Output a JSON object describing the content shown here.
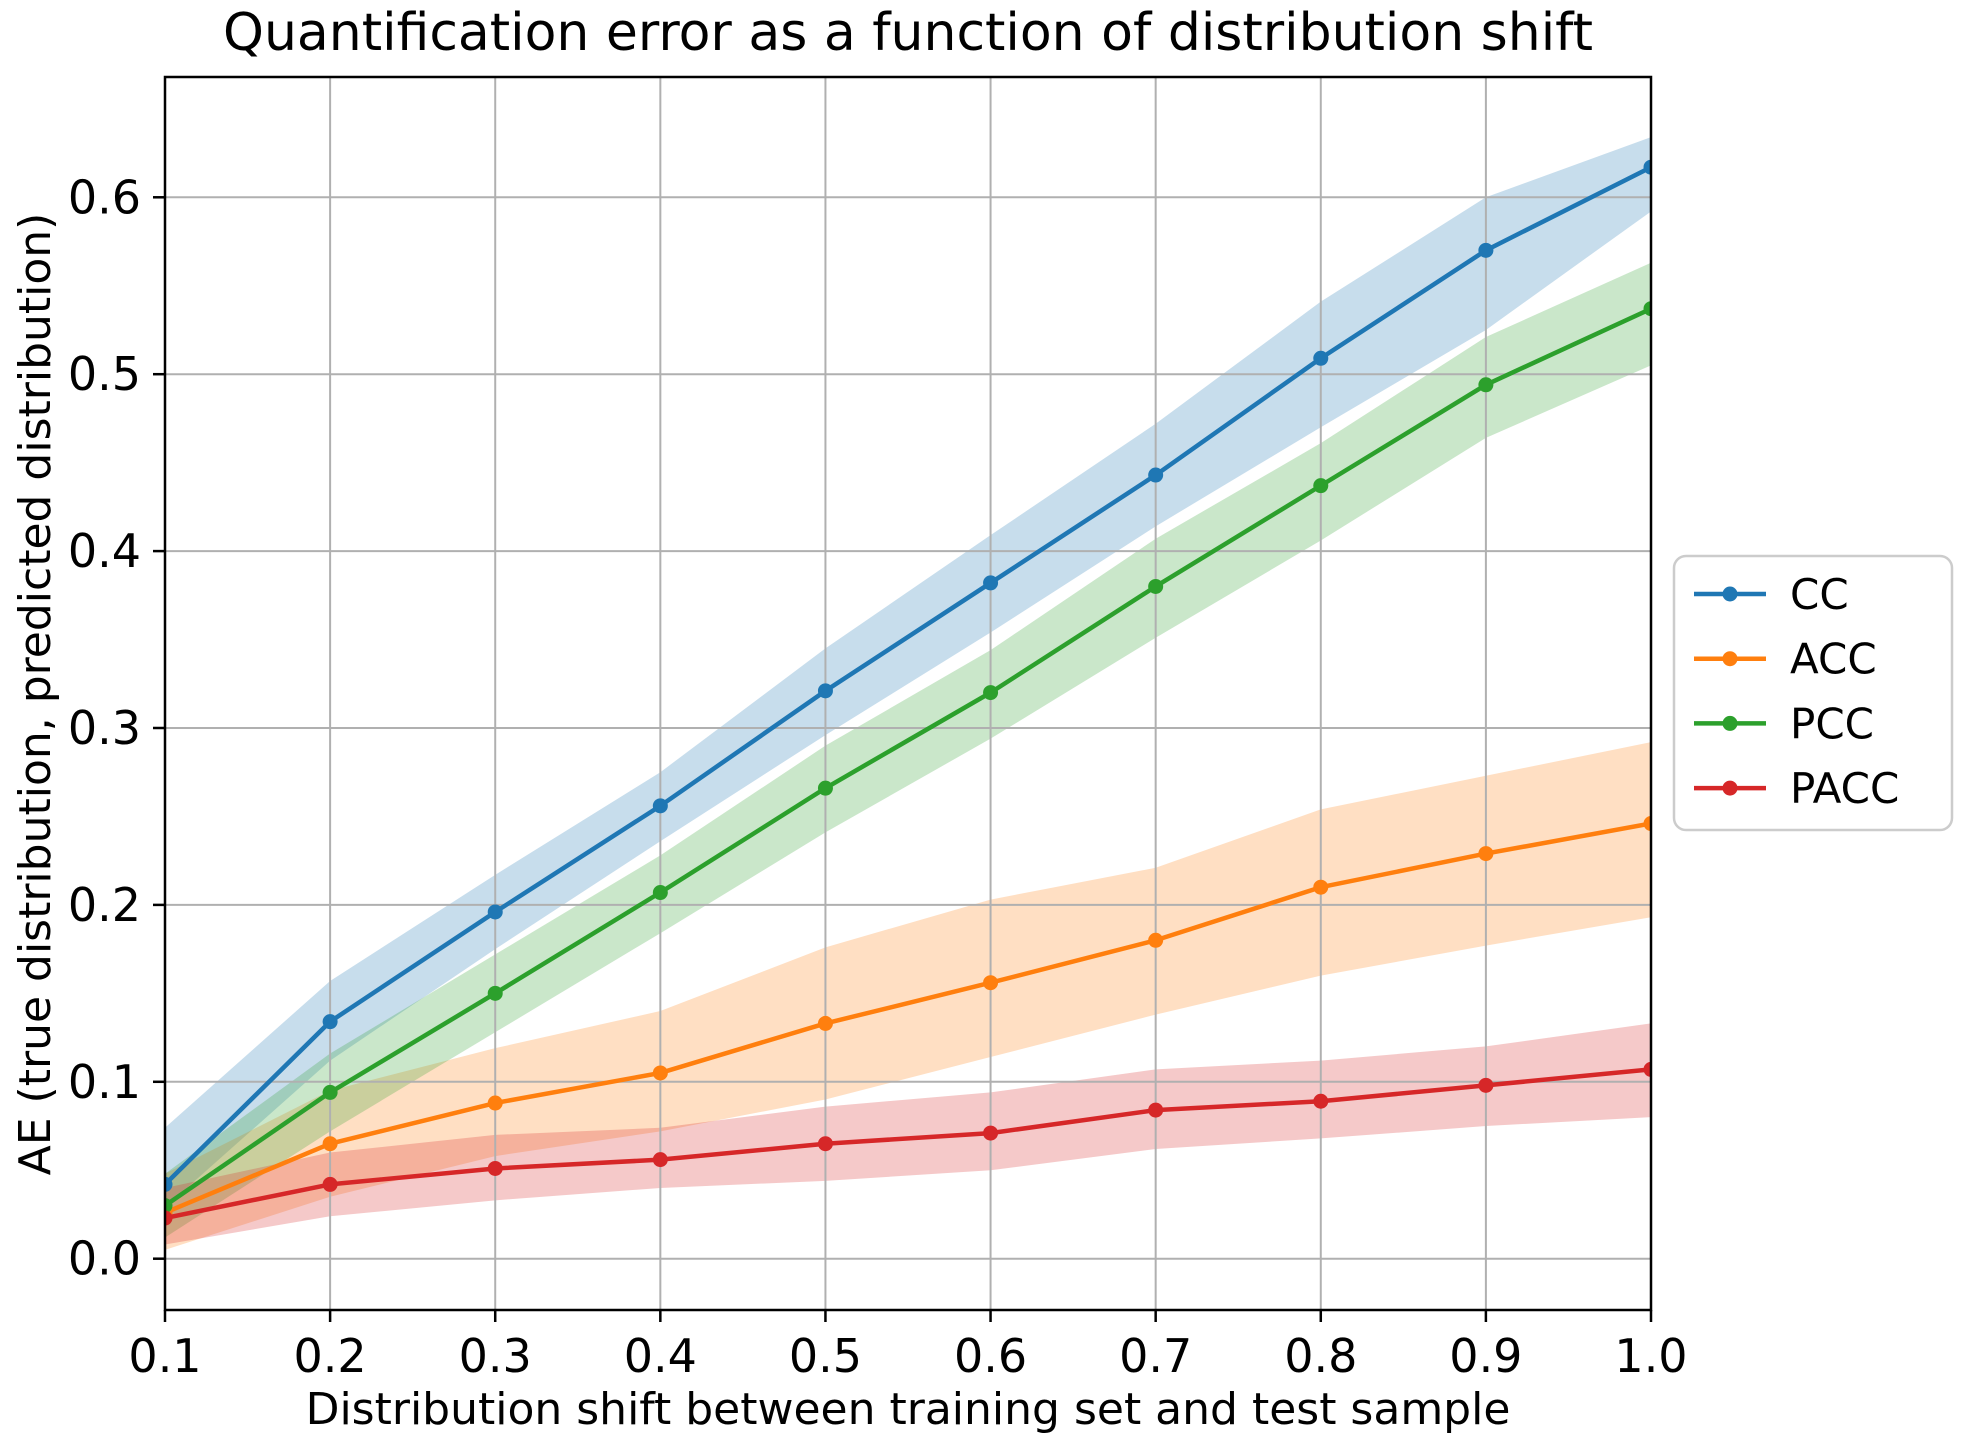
{
  "chart_data": {
    "type": "line",
    "title": "Quantification error as a function of distribution shift",
    "xlabel": "Distribution shift between training set and test sample",
    "ylabel": "AE (true distribution, predicted distribution)",
    "x": [
      0.1,
      0.2,
      0.3,
      0.4,
      0.5,
      0.6,
      0.7,
      0.8,
      0.9,
      1.0
    ],
    "x_tick_labels": [
      "0.1",
      "0.2",
      "0.3",
      "0.4",
      "0.5",
      "0.6",
      "0.7",
      "0.8",
      "0.9",
      "1.0"
    ],
    "y_ticks": [
      0.0,
      0.1,
      0.2,
      0.3,
      0.4,
      0.5,
      0.6
    ],
    "y_tick_labels": [
      "0.0",
      "0.1",
      "0.2",
      "0.3",
      "0.4",
      "0.5",
      "0.6"
    ],
    "xlim": [
      0.1,
      1.0
    ],
    "ylim": [
      -0.029,
      0.668
    ],
    "grid": true,
    "grid_color": "#b0b0b0",
    "background": "#ffffff",
    "band_opacity": 0.25,
    "legend_position": "outside-right",
    "marker": "circle",
    "series": [
      {
        "name": "CC",
        "color": "#1f77b4",
        "values": [
          0.042,
          0.134,
          0.196,
          0.256,
          0.321,
          0.382,
          0.443,
          0.509,
          0.57,
          0.617
        ],
        "band_lower": [
          0.029,
          0.112,
          0.175,
          0.236,
          0.296,
          0.354,
          0.414,
          0.47,
          0.525,
          0.592
        ],
        "band_upper": [
          0.074,
          0.157,
          0.217,
          0.275,
          0.345,
          0.409,
          0.472,
          0.541,
          0.6,
          0.634
        ]
      },
      {
        "name": "ACC",
        "color": "#ff7f0e",
        "values": [
          0.026,
          0.065,
          0.088,
          0.105,
          0.133,
          0.156,
          0.18,
          0.21,
          0.229,
          0.246
        ],
        "band_lower": [
          0.005,
          0.035,
          0.058,
          0.072,
          0.09,
          0.114,
          0.138,
          0.16,
          0.177,
          0.193
        ],
        "band_upper": [
          0.048,
          0.095,
          0.119,
          0.14,
          0.176,
          0.203,
          0.221,
          0.254,
          0.273,
          0.292
        ]
      },
      {
        "name": "PCC",
        "color": "#2ca02c",
        "values": [
          0.03,
          0.094,
          0.15,
          0.207,
          0.266,
          0.32,
          0.38,
          0.437,
          0.494,
          0.537
        ],
        "band_lower": [
          0.012,
          0.072,
          0.128,
          0.184,
          0.241,
          0.294,
          0.351,
          0.406,
          0.464,
          0.505
        ],
        "band_upper": [
          0.048,
          0.116,
          0.172,
          0.228,
          0.29,
          0.344,
          0.407,
          0.461,
          0.521,
          0.563
        ]
      },
      {
        "name": "PACC",
        "color": "#d62728",
        "values": [
          0.023,
          0.042,
          0.051,
          0.056,
          0.065,
          0.071,
          0.084,
          0.089,
          0.098,
          0.107
        ],
        "band_lower": [
          0.008,
          0.024,
          0.033,
          0.04,
          0.044,
          0.05,
          0.062,
          0.068,
          0.075,
          0.08
        ],
        "band_upper": [
          0.04,
          0.06,
          0.07,
          0.074,
          0.086,
          0.094,
          0.107,
          0.112,
          0.12,
          0.133
        ]
      }
    ]
  }
}
